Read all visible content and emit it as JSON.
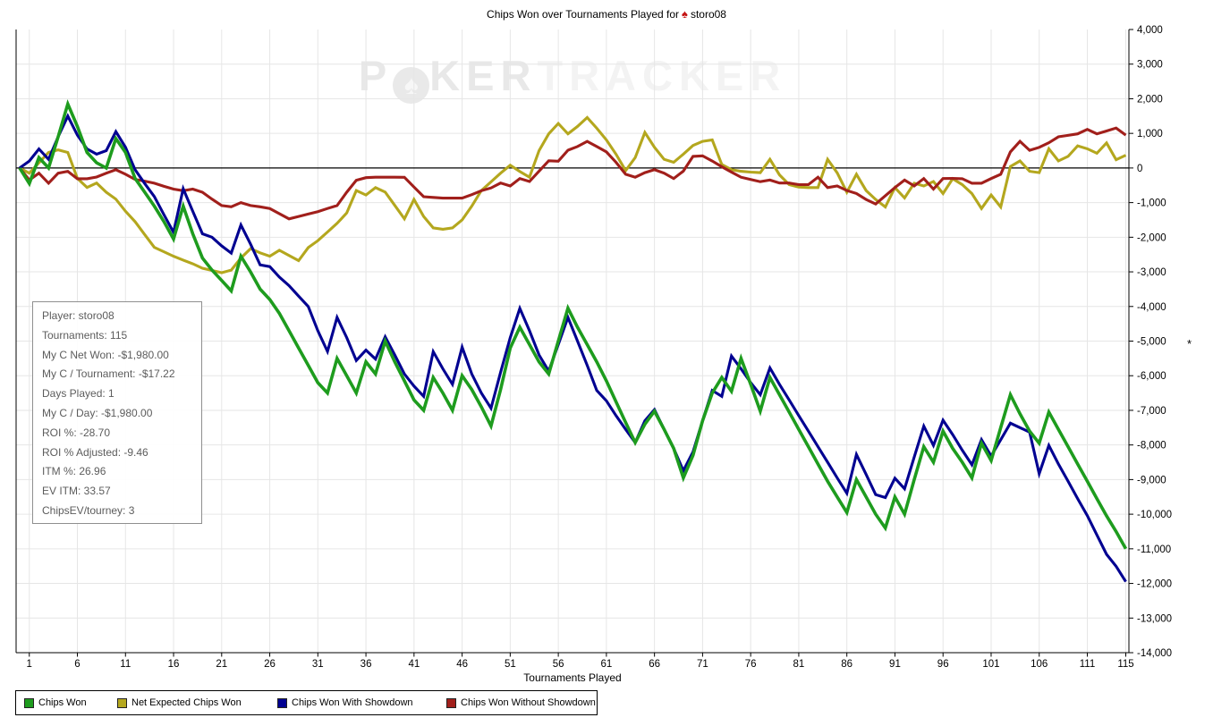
{
  "title": {
    "prefix": "Chips Won over Tournaments Played for",
    "player": "storo08",
    "suit_icon": "spade"
  },
  "watermark": {
    "p1": "P",
    "chip": "♠",
    "p2": "KER",
    "p3": "TRACKER"
  },
  "stats_box": {
    "lines": [
      "Player: storo08",
      "Tournaments: 115",
      "My C Net Won: -$1,980.00",
      "My C / Tournament: -$17.22",
      "Days Played: 1",
      "My C / Day: -$1,980.00",
      "ROI %: -28.70",
      "ROI % Adjusted: -9.46",
      "ITM %: 26.96",
      "EV ITM: 33.57",
      "ChipsEV/tourney: 3"
    ]
  },
  "x_axis": {
    "label": "Tournaments Played",
    "ticks": [
      1,
      6,
      11,
      16,
      21,
      26,
      31,
      36,
      41,
      46,
      51,
      56,
      61,
      66,
      71,
      76,
      81,
      86,
      91,
      96,
      101,
      106,
      111,
      115
    ]
  },
  "y_axis": {
    "title": "*",
    "ticks": [
      4000,
      3000,
      2000,
      1000,
      0,
      -1000,
      -2000,
      -3000,
      -4000,
      -5000,
      -6000,
      -7000,
      -8000,
      -9000,
      -10000,
      -11000,
      -12000,
      -13000,
      -14000
    ]
  },
  "chart_data": {
    "type": "line",
    "title": "Chips Won over Tournaments Played for storo08",
    "xlabel": "Tournaments Played",
    "ylabel": "*",
    "x_range": [
      0,
      115
    ],
    "ylim": [
      -14000,
      4000
    ],
    "grid": true,
    "legend_position": "bottom",
    "colors": {
      "grid": "#e6e6e6",
      "axis": "#000000",
      "zero_line": "#000000"
    },
    "series": [
      {
        "name": "Chips Won",
        "color": "#1e9c1e",
        "values": [
          0,
          -450,
          300,
          0,
          900,
          1850,
          1200,
          450,
          150,
          0,
          850,
          450,
          -300,
          -700,
          -1100,
          -1550,
          -2050,
          -1100,
          -1900,
          -2600,
          -2950,
          -3250,
          -3550,
          -2550,
          -3000,
          -3500,
          -3800,
          -4200,
          -4700,
          -5200,
          -5700,
          -6200,
          -6500,
          -5500,
          -6000,
          -6500,
          -5600,
          -5950,
          -5000,
          -5600,
          -6150,
          -6700,
          -7000,
          -6050,
          -6500,
          -7000,
          -6000,
          -6400,
          -6900,
          -7450,
          -6400,
          -5200,
          -4600,
          -5100,
          -5600,
          -5950,
          -5000,
          -4050,
          -4600,
          -5100,
          -5600,
          -6150,
          -6750,
          -7350,
          -7930,
          -7400,
          -7025,
          -7550,
          -8100,
          -8950,
          -8300,
          -7300,
          -6500,
          -6050,
          -6450,
          -5500,
          -6250,
          -7025,
          -6050,
          -6550,
          -7050,
          -7550,
          -8050,
          -8550,
          -9050,
          -9500,
          -9950,
          -9000,
          -9500,
          -10000,
          -10400,
          -9500,
          -10000,
          -9000,
          -8050,
          -8500,
          -7600,
          -8100,
          -8500,
          -8950,
          -7950,
          -8450,
          -7500,
          -6550,
          -7100,
          -7600,
          -7950,
          -7050,
          -7550,
          -8050,
          -8550,
          -9050,
          -9550,
          -10050,
          -10500,
          -11000
        ]
      },
      {
        "name": "Net Expected Chips Won",
        "color": "#b4a71e",
        "values": [
          0,
          -150,
          150,
          450,
          525,
          450,
          -300,
          -560,
          -435,
          -700,
          -900,
          -1250,
          -1550,
          -1925,
          -2290,
          -2420,
          -2550,
          -2660,
          -2765,
          -2895,
          -2960,
          -3025,
          -2950,
          -2600,
          -2330,
          -2450,
          -2550,
          -2375,
          -2525,
          -2675,
          -2300,
          -2100,
          -1850,
          -1600,
          -1300,
          -650,
          -780,
          -565,
          -695,
          -1080,
          -1470,
          -910,
          -1400,
          -1730,
          -1770,
          -1730,
          -1500,
          -1100,
          -650,
          -400,
          -150,
          80,
          -100,
          -265,
          500,
          985,
          1285,
          985,
          1200,
          1455,
          1150,
          810,
          400,
          -75,
          300,
          1025,
          600,
          250,
          165,
          400,
          650,
          770,
          810,
          100,
          -50,
          -95,
          -120,
          -135,
          250,
          -200,
          -480,
          -550,
          -565,
          -565,
          250,
          -140,
          -700,
          -180,
          -650,
          -910,
          -1125,
          -565,
          -866,
          -440,
          -520,
          -390,
          -740,
          -310,
          -480,
          -740,
          -1170,
          -780,
          -1125,
          40,
          205,
          -95,
          -135,
          555,
          205,
          335,
          640,
          555,
          425,
          725,
          240,
          370
        ]
      },
      {
        "name": "Chips Won With Showdown",
        "color": "#000091",
        "values": [
          0,
          200,
          550,
          250,
          900,
          1500,
          950,
          550,
          400,
          500,
          1050,
          600,
          -50,
          -450,
          -825,
          -1350,
          -1860,
          -600,
          -1250,
          -1900,
          -2000,
          -2250,
          -2460,
          -1645,
          -2200,
          -2800,
          -2850,
          -3150,
          -3400,
          -3700,
          -4000,
          -4700,
          -5300,
          -4315,
          -4900,
          -5560,
          -5260,
          -5520,
          -4875,
          -5400,
          -5950,
          -6300,
          -6595,
          -5305,
          -5800,
          -6250,
          -5175,
          -5950,
          -6500,
          -6940,
          -5900,
          -4900,
          -4055,
          -4700,
          -5400,
          -5865,
          -5100,
          -4315,
          -5000,
          -5700,
          -6425,
          -6725,
          -7150,
          -7550,
          -7930,
          -7300,
          -6980,
          -7550,
          -8100,
          -8745,
          -8200,
          -7300,
          -6425,
          -6595,
          -5430,
          -5800,
          -6200,
          -6550,
          -5775,
          -6250,
          -6700,
          -7150,
          -7600,
          -8050,
          -8500,
          -8950,
          -9395,
          -8275,
          -8850,
          -9435,
          -9520,
          -8960,
          -9265,
          -8350,
          -7455,
          -8015,
          -7285,
          -7700,
          -8150,
          -8575,
          -7845,
          -8320,
          -7850,
          -7370,
          -7500,
          -7630,
          -8830,
          -8015,
          -8550,
          -9050,
          -9550,
          -10040,
          -10600,
          -11160,
          -11505,
          -11950
        ]
      },
      {
        "name": "Chips Won Without Showdown",
        "color": "#a11f1b",
        "values": [
          0,
          -350,
          -150,
          -440,
          -150,
          -95,
          -310,
          -310,
          -260,
          -150,
          -50,
          -180,
          -330,
          -380,
          -440,
          -530,
          -610,
          -655,
          -610,
          -700,
          -900,
          -1085,
          -1120,
          -1000,
          -1085,
          -1120,
          -1170,
          -1320,
          -1470,
          -1400,
          -1330,
          -1260,
          -1170,
          -1085,
          -700,
          -355,
          -280,
          -265,
          -265,
          -265,
          -270,
          -550,
          -830,
          -850,
          -870,
          -870,
          -870,
          -770,
          -655,
          -575,
          -435,
          -520,
          -305,
          -390,
          -90,
          210,
          195,
          513,
          620,
          770,
          620,
          465,
          165,
          -180,
          -265,
          -135,
          -50,
          -150,
          -305,
          -90,
          335,
          350,
          200,
          35,
          -120,
          -265,
          -330,
          -395,
          -350,
          -435,
          -435,
          -480,
          -480,
          -265,
          -565,
          -520,
          -650,
          -737,
          -910,
          -1040,
          -800,
          -565,
          -350,
          -520,
          -305,
          -610,
          -305,
          -300,
          -310,
          -440,
          -440,
          -305,
          -180,
          465,
          770,
          510,
          595,
          727,
          900,
          943,
          985,
          1115,
          985,
          1070,
          1155,
          950
        ]
      }
    ]
  }
}
